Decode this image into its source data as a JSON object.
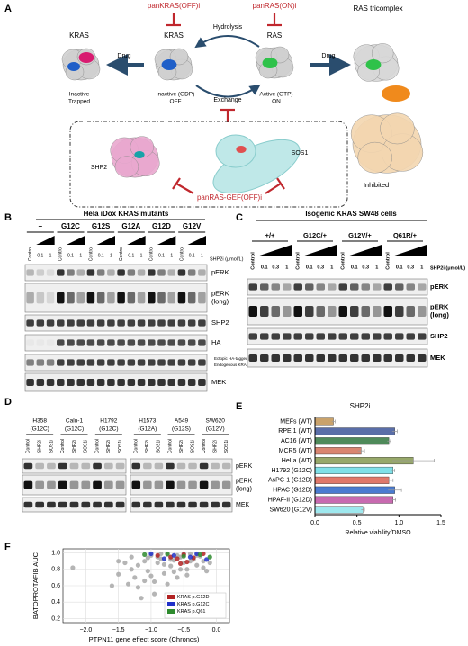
{
  "panel_labels": [
    "A",
    "B",
    "C",
    "D",
    "E",
    "F"
  ],
  "panel_a": {
    "kras_trapped": "KRAS",
    "inactive_trapped": [
      "Inactive",
      "Trapped"
    ],
    "drug_left": "Drug",
    "inhibitor_off": "panKRAS(OFF)i",
    "kras_off": "KRAS",
    "inactive_gdp": "Inactive (GDP)",
    "off": "OFF",
    "hydrolysis": "Hydrolysis",
    "exchange": "Exchange",
    "inhibitor_on": "panRAS(ON)i",
    "ras": "RAS",
    "active_gtp": "Active (GTP)",
    "on": "ON",
    "drug_right": "Drug",
    "tricomplex": "RAS tricomplex",
    "inhibited": "Inhibited",
    "shp2": "SHP2",
    "sos1": "SOS1",
    "inhibitor_gef": "panRAS-GEF(OFF)i"
  },
  "panel_b": {
    "title": "Hela iDox KRAS mutants",
    "groups": [
      "–",
      "G12C",
      "G12S",
      "G12A",
      "G12D",
      "G12V"
    ],
    "lanes": [
      "Control",
      "0.1",
      "1"
    ],
    "dose_label": "SHP2i (μmol/L)",
    "rows": [
      [
        "pERK"
      ],
      [
        "pERK",
        "(long)"
      ],
      [
        "SHP2"
      ],
      [
        "HA"
      ],
      [
        "MEK"
      ]
    ],
    "bands": [
      "Ectopic HA-tagged KRAS",
      "Endogenous KRAS"
    ]
  },
  "panel_c": {
    "title": "Isogenic KRAS SW48 cells",
    "groups": [
      "+/+",
      "G12C/+",
      "G12V/+",
      "Q61R/+"
    ],
    "lanes": [
      "Control",
      "0.1",
      "0.3",
      "1"
    ],
    "dose_label": "SHP2i (μmol/L)",
    "rows": [
      [
        "pERK"
      ],
      [
        "pERK",
        "(long)"
      ],
      [
        "SHP2"
      ],
      [
        "MEK"
      ]
    ]
  },
  "panel_d": {
    "cell_lines": [
      [
        "H358",
        "(G12C)"
      ],
      [
        "Calu-1",
        "(G12C)"
      ],
      [
        "H1792",
        "(G12C)"
      ],
      [
        "H1573",
        "(G12A)"
      ],
      [
        "A549",
        "(G12S)"
      ],
      [
        "SW620",
        "(G12V)"
      ]
    ],
    "lanes": [
      "Control",
      "SHP2i",
      "SOS1i"
    ],
    "rows": [
      [
        "pERK"
      ],
      [
        "pERK",
        "(long)"
      ],
      [
        "MEK"
      ]
    ]
  },
  "chart_data": [
    {
      "type": "bar",
      "orientation": "horizontal",
      "title": "SHP2i",
      "x_label": "Relative viability/DMSO",
      "categories": [
        "MEFs (WT)",
        "RPE.1 (WT)",
        "AC16 (WT)",
        "MCR5 (WT)",
        "HeLa (WT)",
        "H1792 (G12C)",
        "AsPC-1 (G12D)",
        "HPAC (G12D)",
        "HPAF-II (G12D)",
        "SW620 (G12V)"
      ],
      "values": [
        0.22,
        0.95,
        0.88,
        0.55,
        1.17,
        0.93,
        0.88,
        0.95,
        0.93,
        0.57
      ],
      "errors": [
        0.02,
        0.03,
        0.02,
        0.04,
        0.25,
        0.02,
        0.05,
        0.08,
        0.03,
        0.02
      ],
      "colors": [
        "#c9a26b",
        "#5a6ea8",
        "#4f8a5a",
        "#d98570",
        "#97a86a",
        "#7fe0e8",
        "#e0786a",
        "#4a7bd0",
        "#c86ab0",
        "#9ee8ee"
      ],
      "xlim": [
        0,
        1.5
      ],
      "xticks": [
        {
          "value": 0,
          "label": "0.0"
        },
        0.5,
        {
          "value": 1,
          "label": "1.0"
        },
        1.5
      ]
    },
    {
      "type": "scatter",
      "x_label": "PTPN11 gene effect score (Chronos)",
      "y_label": "BATOPROTAFIB AUC",
      "xlim": [
        -2.35,
        0.2
      ],
      "ylim": [
        0.15,
        1.05
      ],
      "xticks": [
        {
          "value": -2,
          "label": "−2.0"
        },
        {
          "value": -1.5,
          "label": "−1.5"
        },
        {
          "value": -1,
          "label": "−1.0"
        },
        {
          "value": -0.5,
          "label": "−0.5"
        },
        {
          "value": 0,
          "label": "0.0"
        }
      ],
      "yticks": [
        0.2,
        0.4,
        0.6,
        0.8,
        {
          "value": 1,
          "label": "1.0"
        }
      ],
      "grid": true,
      "legend": "lower right",
      "series": [
        {
          "color": "#a8a8a8",
          "x": [
            -2.2,
            -1.6,
            -1.5,
            -1.4,
            -1.35,
            -1.3,
            -1.25,
            -1.2,
            -1.15,
            -1.1,
            -1.05,
            -1.0,
            -0.95,
            -0.9,
            -0.85,
            -0.8,
            -0.75,
            -0.7,
            -0.65,
            -0.6,
            -0.55,
            -0.5,
            -0.45,
            -0.4,
            -0.35,
            -0.3,
            -0.25,
            -0.2,
            -0.15,
            -0.1,
            -1.3,
            -1.1,
            -0.9,
            -0.7,
            -0.5,
            -0.3,
            -1.2,
            -1.0,
            -0.8,
            -0.6,
            -0.4,
            -0.2,
            -1.5,
            -0.95,
            -0.75,
            -0.55,
            -1.05,
            -0.85,
            -0.65,
            -0.45
          ],
          "values": [
            0.82,
            0.6,
            0.74,
            0.88,
            0.62,
            0.95,
            0.7,
            0.85,
            0.45,
            0.9,
            0.78,
            0.97,
            0.65,
            0.88,
            0.93,
            0.75,
            0.98,
            0.84,
            0.91,
            0.7,
            0.95,
            0.88,
            0.8,
            0.99,
            0.92,
            0.85,
            0.96,
            0.9,
            0.78,
            0.88,
            0.8,
            0.66,
            0.95,
            0.92,
            0.99,
            0.97,
            0.58,
            0.72,
            0.86,
            0.97,
            0.9,
            0.82,
            0.9,
            0.5,
            0.62,
            0.8,
            0.94,
            0.99,
            0.77,
            0.73
          ]
        },
        {
          "name": "KRAS p.G12D",
          "color": "#b22222",
          "x": [
            -0.9,
            -0.7,
            -0.6,
            -0.5,
            -0.45,
            -0.35,
            -0.2,
            -0.55
          ],
          "values": [
            0.97,
            0.95,
            0.93,
            0.98,
            0.89,
            0.94,
            0.99,
            0.87
          ]
        },
        {
          "name": "KRAS p.G12C",
          "color": "#2030c8",
          "x": [
            -1.0,
            -0.8,
            -0.65,
            -0.4,
            -0.3,
            -0.15
          ],
          "values": [
            0.99,
            0.93,
            0.97,
            0.95,
            0.99,
            0.92
          ]
        },
        {
          "name": "KRAS p.Q61",
          "color": "#2e8b2e",
          "x": [
            -1.1,
            -0.75,
            -0.5,
            -0.25,
            -0.1
          ],
          "values": [
            0.98,
            0.99,
            0.96,
            0.98,
            0.95
          ]
        }
      ]
    }
  ]
}
